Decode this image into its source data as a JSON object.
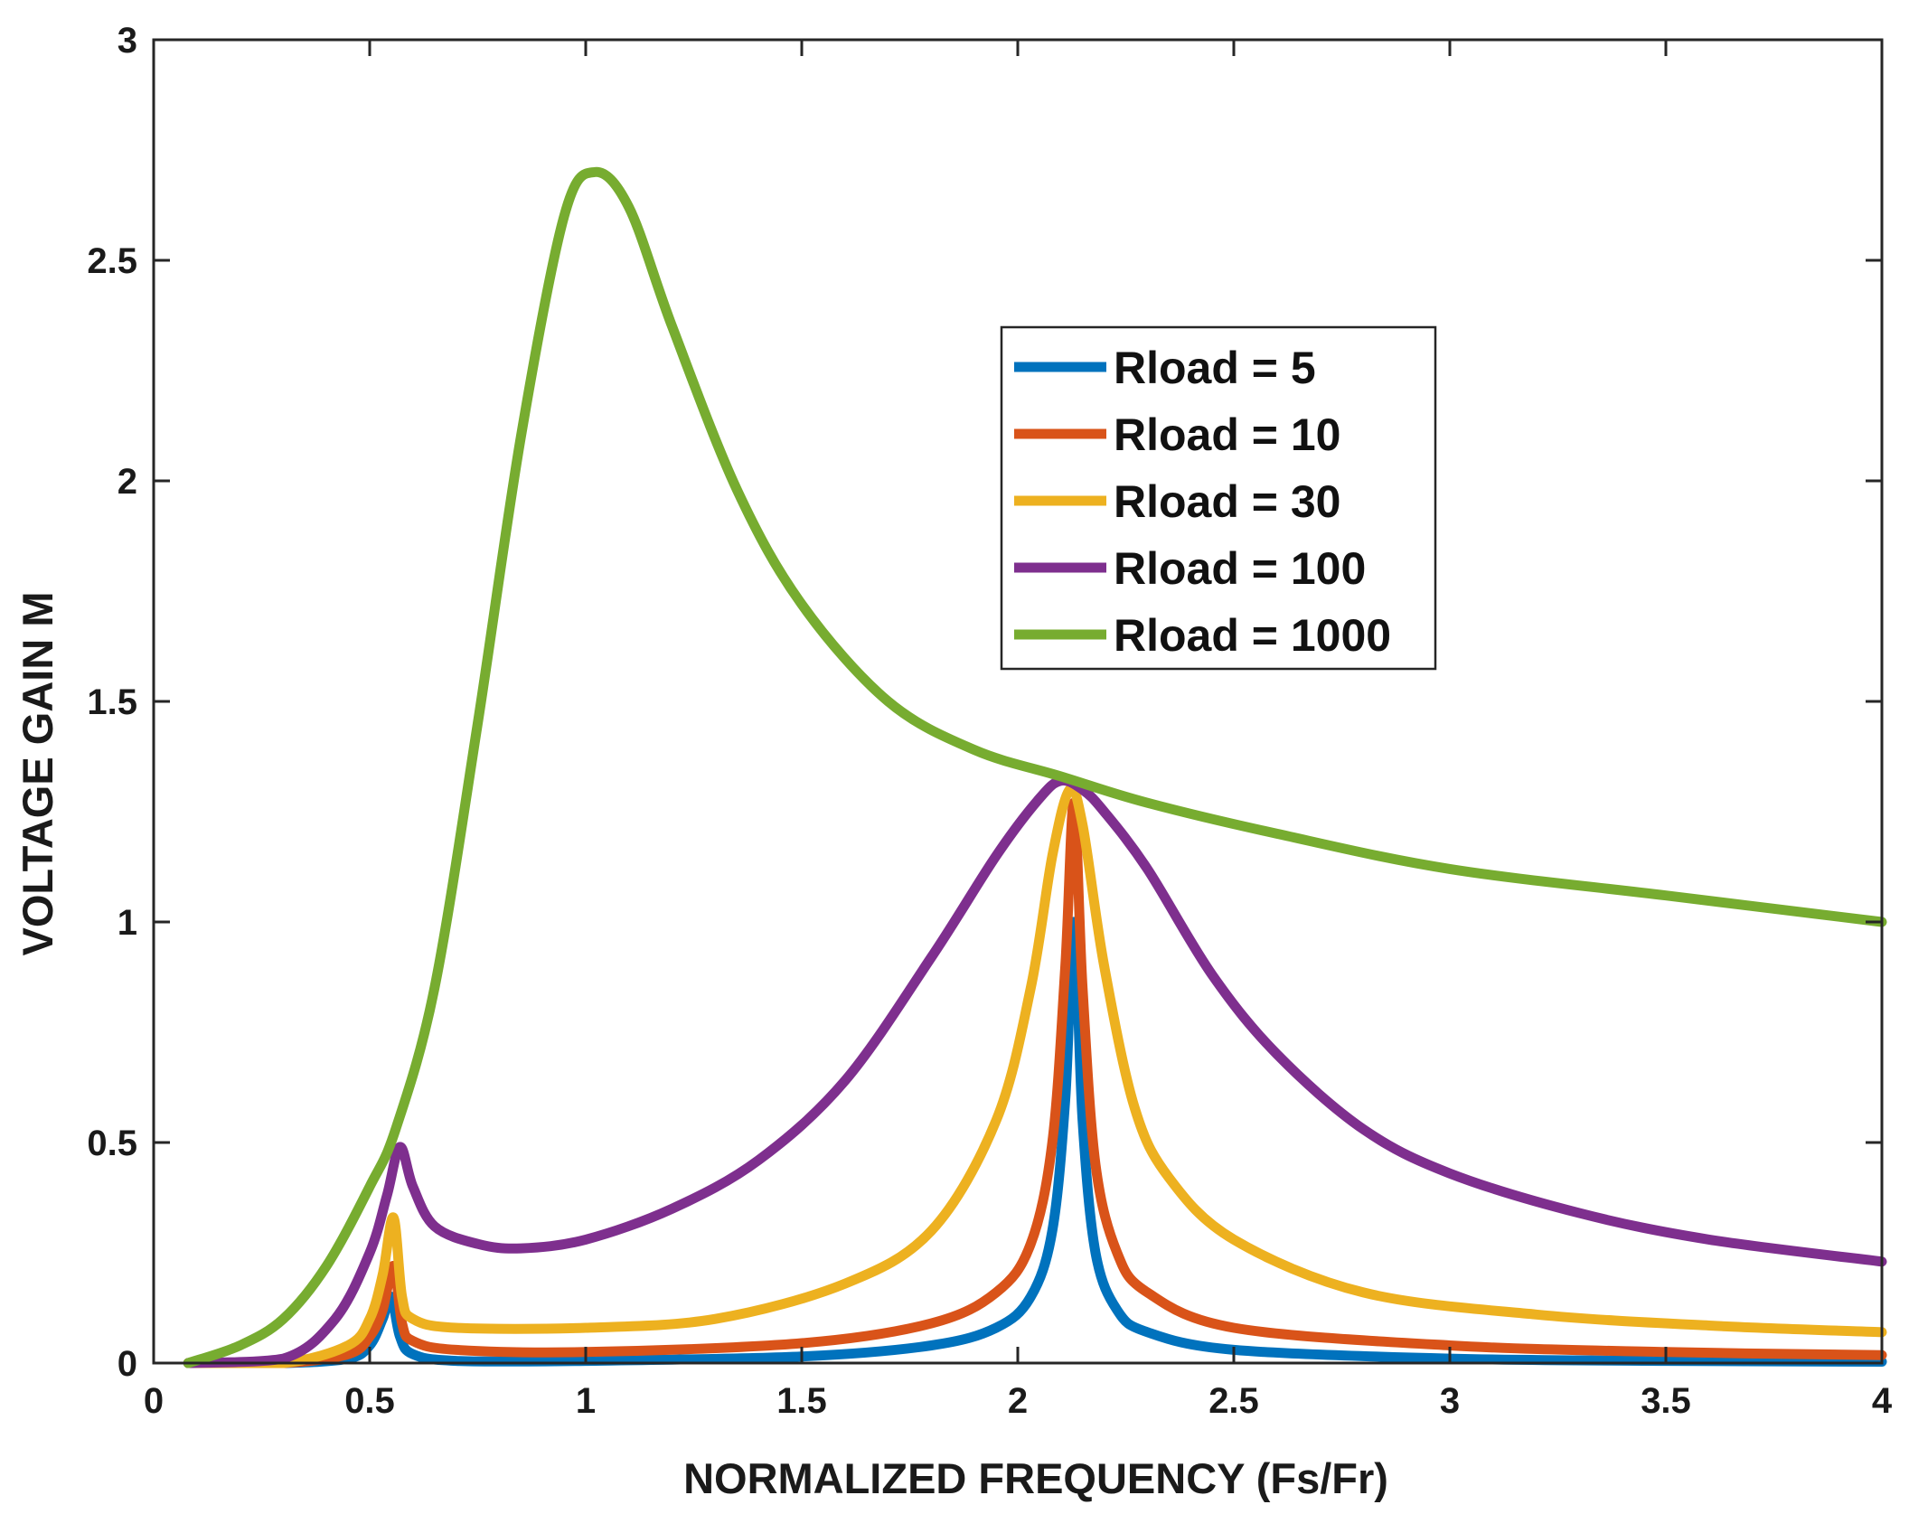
{
  "chart_data": {
    "type": "line",
    "title": "",
    "xlabel": "NORMALIZED FREQUENCY (Fs/Fr)",
    "ylabel": "VOLTAGE GAIN M",
    "xlim": [
      0,
      4
    ],
    "ylim": [
      0,
      3
    ],
    "grid": false,
    "legend_position": "upper-center-right",
    "x_ticks": [
      0,
      0.5,
      1,
      1.5,
      2,
      2.5,
      3,
      3.5,
      4
    ],
    "x_tick_labels": [
      "0",
      "0.5",
      "1",
      "1.5",
      "2",
      "2.5",
      "3",
      "3.5",
      "4"
    ],
    "y_ticks": [
      0,
      0.5,
      1,
      1.5,
      2,
      2.5,
      3
    ],
    "y_tick_labels": [
      "0",
      "0.5",
      "1",
      "1.5",
      "2",
      "2.5",
      "3"
    ],
    "series": [
      {
        "name": "Rload = 5",
        "color": "#0072BD",
        "x": [
          0.08,
          0.3,
          0.45,
          0.5,
          0.53,
          0.55,
          0.57,
          0.6,
          0.7,
          1.0,
          1.5,
          1.8,
          1.95,
          2.03,
          2.08,
          2.11,
          2.13,
          2.15,
          2.18,
          2.23,
          2.3,
          2.5,
          3.0,
          3.5,
          4.0
        ],
        "values": [
          0.0,
          0.0,
          0.01,
          0.04,
          0.1,
          0.15,
          0.06,
          0.02,
          0.005,
          0.005,
          0.015,
          0.04,
          0.08,
          0.15,
          0.3,
          0.6,
          1.0,
          0.55,
          0.25,
          0.12,
          0.07,
          0.03,
          0.01,
          0.005,
          0.003
        ]
      },
      {
        "name": "Rload = 10",
        "color": "#D95319",
        "x": [
          0.08,
          0.3,
          0.45,
          0.5,
          0.53,
          0.555,
          0.575,
          0.6,
          0.7,
          1.0,
          1.5,
          1.8,
          1.95,
          2.03,
          2.08,
          2.11,
          2.13,
          2.15,
          2.18,
          2.23,
          2.3,
          2.5,
          3.0,
          3.5,
          4.0
        ],
        "values": [
          0.0,
          0.0,
          0.02,
          0.06,
          0.12,
          0.22,
          0.09,
          0.05,
          0.03,
          0.025,
          0.045,
          0.09,
          0.16,
          0.27,
          0.5,
          0.9,
          1.27,
          0.85,
          0.45,
          0.25,
          0.16,
          0.08,
          0.04,
          0.025,
          0.018
        ]
      },
      {
        "name": "Rload = 30",
        "color": "#EDB120",
        "x": [
          0.08,
          0.3,
          0.45,
          0.5,
          0.53,
          0.555,
          0.575,
          0.6,
          0.7,
          1.0,
          1.3,
          1.6,
          1.8,
          1.95,
          2.03,
          2.08,
          2.12,
          2.15,
          2.2,
          2.27,
          2.35,
          2.5,
          2.8,
          3.2,
          3.6,
          4.0
        ],
        "values": [
          0.0,
          0.0,
          0.04,
          0.1,
          0.2,
          0.33,
          0.15,
          0.1,
          0.08,
          0.08,
          0.1,
          0.18,
          0.3,
          0.55,
          0.85,
          1.15,
          1.3,
          1.22,
          0.9,
          0.58,
          0.42,
          0.28,
          0.16,
          0.11,
          0.085,
          0.07
        ]
      },
      {
        "name": "Rload = 100",
        "color": "#7E2F8E",
        "x": [
          0.08,
          0.3,
          0.42,
          0.5,
          0.54,
          0.57,
          0.6,
          0.65,
          0.75,
          0.85,
          1.0,
          1.2,
          1.4,
          1.6,
          1.8,
          1.95,
          2.05,
          2.1,
          2.15,
          2.2,
          2.3,
          2.45,
          2.6,
          2.8,
          3.0,
          3.3,
          3.6,
          4.0
        ],
        "values": [
          0.0,
          0.01,
          0.1,
          0.25,
          0.38,
          0.49,
          0.4,
          0.31,
          0.27,
          0.26,
          0.28,
          0.35,
          0.46,
          0.64,
          0.92,
          1.15,
          1.28,
          1.32,
          1.3,
          1.25,
          1.12,
          0.88,
          0.7,
          0.53,
          0.43,
          0.34,
          0.28,
          0.23
        ]
      },
      {
        "name": "Rload = 1000",
        "color": "#77AC30",
        "x": [
          0.08,
          0.2,
          0.3,
          0.4,
          0.5,
          0.56,
          0.65,
          0.75,
          0.85,
          0.95,
          1.02,
          1.1,
          1.2,
          1.35,
          1.5,
          1.7,
          1.9,
          2.1,
          2.3,
          2.6,
          3.0,
          3.5,
          4.0
        ],
        "values": [
          0.0,
          0.04,
          0.1,
          0.22,
          0.4,
          0.53,
          0.85,
          1.45,
          2.1,
          2.6,
          2.7,
          2.62,
          2.35,
          1.98,
          1.72,
          1.5,
          1.39,
          1.33,
          1.27,
          1.2,
          1.12,
          1.06,
          1.0
        ]
      }
    ]
  }
}
